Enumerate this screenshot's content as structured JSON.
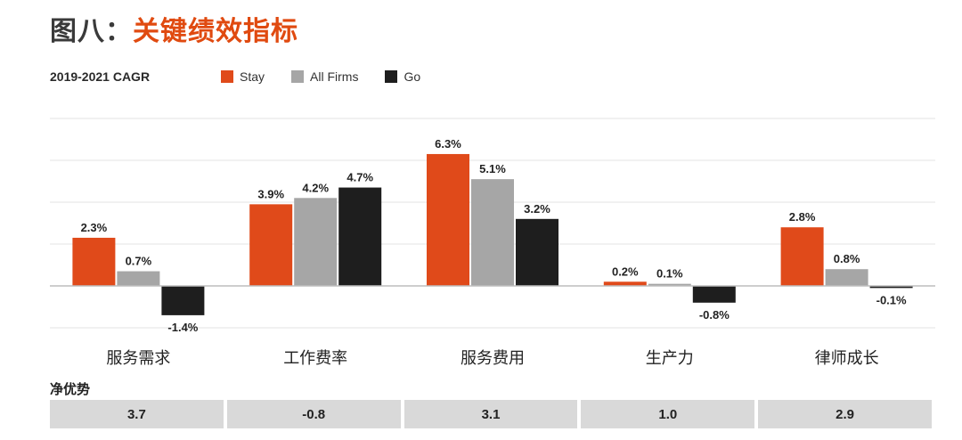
{
  "header": {
    "title_prefix": "图八：",
    "title_main": "关键绩效指标",
    "subtitle": "2019-2021 CAGR"
  },
  "legend": [
    {
      "label": "Stay",
      "color": "#e04a1a"
    },
    {
      "label": "All Firms",
      "color": "#a6a6a6"
    },
    {
      "label": "Go",
      "color": "#1e1e1e"
    }
  ],
  "chart_data": {
    "type": "bar",
    "title": "关键绩效指标",
    "subtitle": "2019-2021 CAGR",
    "categories": [
      "服务需求",
      "工作费率",
      "服务费用",
      "生产力",
      "律师成长"
    ],
    "series": [
      {
        "name": "Stay",
        "color": "#e04a1a",
        "values": [
          2.3,
          3.9,
          6.3,
          0.2,
          2.8
        ],
        "labels": [
          "2.3%",
          "3.9%",
          "6.3%",
          "0.2%",
          "2.8%"
        ]
      },
      {
        "name": "All Firms",
        "color": "#a6a6a6",
        "values": [
          0.7,
          4.2,
          5.1,
          0.1,
          0.8
        ],
        "labels": [
          "0.7%",
          "4.2%",
          "5.1%",
          "0.1%",
          "0.8%"
        ]
      },
      {
        "name": "Go",
        "color": "#1e1e1e",
        "values": [
          -1.4,
          4.7,
          3.2,
          -0.8,
          -0.1
        ],
        "labels": [
          "-1.4%",
          "4.7%",
          "3.2%",
          "-0.8%",
          "-0.1%"
        ]
      }
    ],
    "ylim": [
      -2,
      8
    ],
    "grid": true,
    "legend_position": "top"
  },
  "net_advantage": {
    "label": "净优势",
    "values": [
      "3.7",
      "-0.8",
      "3.1",
      "1.0",
      "2.9"
    ]
  }
}
